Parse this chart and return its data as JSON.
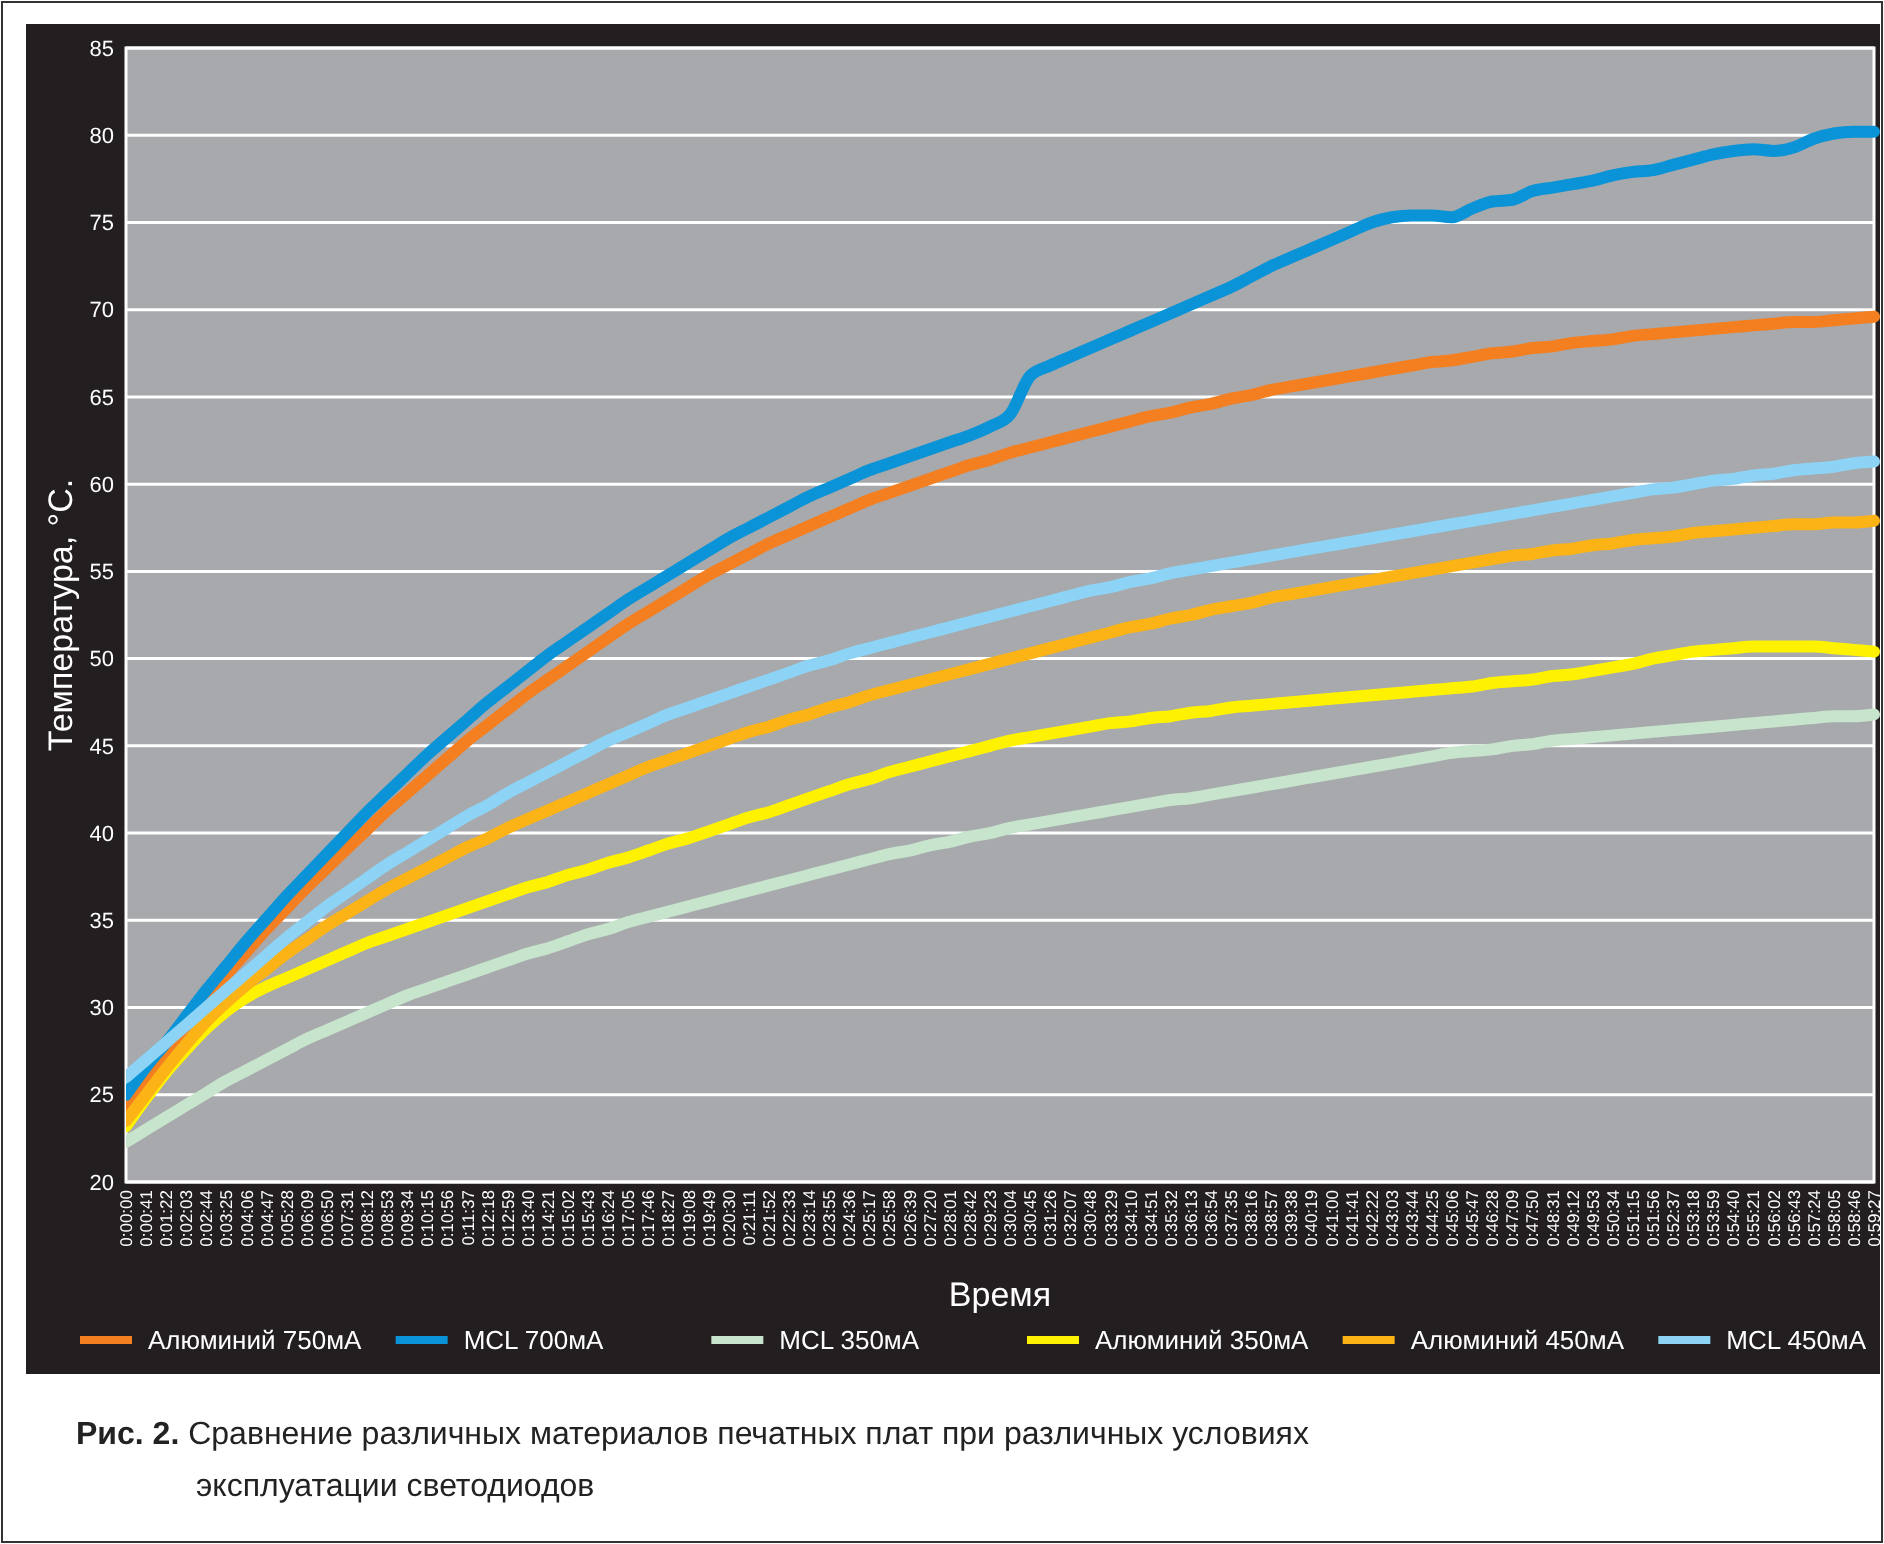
{
  "chart_data": {
    "type": "line",
    "xlabel": "Время",
    "ylabel": "Температура, °C.",
    "annotations": [
      "Рис. 2.",
      "Сравнение различных материалов печатных плат при различных условиях эксплуатации светодиодов"
    ],
    "categories": [
      "0:00:00",
      "0:00:41",
      "0:01:22",
      "0:02:03",
      "0:02:44",
      "0:03:25",
      "0:04:06",
      "0:04:47",
      "0:05:28",
      "0:06:09",
      "0:06:50",
      "0:07:31",
      "0:08:12",
      "0:08:53",
      "0:09:34",
      "0:10:15",
      "0:10:56",
      "0:11:37",
      "0:12:18",
      "0:12:59",
      "0:13:40",
      "0:14:21",
      "0:15:02",
      "0:15:43",
      "0:16:24",
      "0:17:05",
      "0:17:46",
      "0:18:27",
      "0:19:08",
      "0:19:49",
      "0:20:30",
      "0:21:11",
      "0:21:52",
      "0:22:33",
      "0:23:14",
      "0:23:55",
      "0:24:36",
      "0:25:17",
      "0:25:58",
      "0:26:39",
      "0:27:20",
      "0:28:01",
      "0:28:42",
      "0:29:23",
      "0:30:04",
      "0:30:45",
      "0:31:26",
      "0:32:07",
      "0:30:48",
      "0:33:29",
      "0:34:10",
      "0:34:51",
      "0:35:32",
      "0:36:13",
      "0:36:54",
      "0:37:35",
      "0:38:16",
      "0:38:57",
      "0:39:38",
      "0:40:19",
      "0:41:00",
      "0:41:41",
      "0:42:22",
      "0:43:03",
      "0:43:44",
      "0:44:25",
      "0:45:06",
      "0:45:47",
      "0:46:28",
      "0:47:09",
      "0:47:50",
      "0:48:31",
      "0:49:12",
      "0:49:53",
      "0:50:34",
      "0:51:15",
      "0:51:56",
      "0:52:37",
      "0:53:18",
      "0:53:59",
      "0:54:40",
      "0:55:21",
      "0:56:02",
      "0:56:43",
      "0:57:24",
      "0:58:05",
      "0:58:46",
      "0:59:27"
    ],
    "series": [
      {
        "name": "Алюминий 750мА",
        "color": "#f47f20",
        "values": [
          24.0,
          25.8,
          27.5,
          29.0,
          30.5,
          31.9,
          33.2,
          34.5,
          35.7,
          36.9,
          38.0,
          39.1,
          40.2,
          41.3,
          42.3,
          43.3,
          44.3,
          45.3,
          46.2,
          47.1,
          48.0,
          48.8,
          49.6,
          50.4,
          51.2,
          52.0,
          52.7,
          53.4,
          54.1,
          54.8,
          55.4,
          56.0,
          56.6,
          57.1,
          57.6,
          58.1,
          58.6,
          59.1,
          59.5,
          59.9,
          60.3,
          60.7,
          61.1,
          61.4,
          61.8,
          62.1,
          62.4,
          62.7,
          63.0,
          63.3,
          63.6,
          63.9,
          64.1,
          64.4,
          64.6,
          64.9,
          65.1,
          65.4,
          65.6,
          65.8,
          66.0,
          66.2,
          66.4,
          66.6,
          66.8,
          67.0,
          67.1,
          67.3,
          67.5,
          67.6,
          67.8,
          67.9,
          68.1,
          68.2,
          68.3,
          68.5,
          68.6,
          68.7,
          68.8,
          68.9,
          69.0,
          69.1,
          69.2,
          69.3,
          69.3,
          69.4,
          69.5,
          69.6
        ]
      },
      {
        "name": "MCL 700мА",
        "color": "#0a93d6",
        "values": [
          25.0,
          26.6,
          28.0,
          29.5,
          31.0,
          32.4,
          33.8,
          35.1,
          36.4,
          37.6,
          38.8,
          40.0,
          41.2,
          42.3,
          43.4,
          44.5,
          45.5,
          46.5,
          47.5,
          48.4,
          49.3,
          50.2,
          51.0,
          51.8,
          52.6,
          53.4,
          54.1,
          54.8,
          55.5,
          56.2,
          56.9,
          57.5,
          58.1,
          58.7,
          59.3,
          59.8,
          60.3,
          60.8,
          61.2,
          61.6,
          62.0,
          62.4,
          62.8,
          63.3,
          64.0,
          66.2,
          66.8,
          67.3,
          67.8,
          68.3,
          68.8,
          69.3,
          69.8,
          70.3,
          70.8,
          71.3,
          71.9,
          72.5,
          73.0,
          73.5,
          74.0,
          74.5,
          75.0,
          75.3,
          75.4,
          75.4,
          75.3,
          75.8,
          76.2,
          76.3,
          76.8,
          77.0,
          77.2,
          77.4,
          77.7,
          77.9,
          78.0,
          78.3,
          78.6,
          78.9,
          79.1,
          79.2,
          79.1,
          79.3,
          79.8,
          80.1,
          80.2,
          80.2
        ]
      },
      {
        "name": "MCL 350мА",
        "color": "#c7e4cc",
        "values": [
          22.3,
          23.0,
          23.7,
          24.4,
          25.1,
          25.8,
          26.4,
          27.0,
          27.6,
          28.2,
          28.7,
          29.2,
          29.7,
          30.2,
          30.7,
          31.1,
          31.5,
          31.9,
          32.3,
          32.7,
          33.1,
          33.4,
          33.8,
          34.2,
          34.5,
          34.9,
          35.2,
          35.5,
          35.8,
          36.1,
          36.4,
          36.7,
          37.0,
          37.3,
          37.6,
          37.9,
          38.2,
          38.5,
          38.8,
          39.0,
          39.3,
          39.5,
          39.8,
          40.0,
          40.3,
          40.5,
          40.7,
          40.9,
          41.1,
          41.3,
          41.5,
          41.7,
          41.9,
          42.0,
          42.2,
          42.4,
          42.6,
          42.8,
          43.0,
          43.2,
          43.4,
          43.6,
          43.8,
          44.0,
          44.2,
          44.4,
          44.6,
          44.7,
          44.8,
          45.0,
          45.1,
          45.3,
          45.4,
          45.5,
          45.6,
          45.7,
          45.8,
          45.9,
          46.0,
          46.1,
          46.2,
          46.3,
          46.4,
          46.5,
          46.6,
          46.7,
          46.7,
          46.8
        ]
      },
      {
        "name": "Алюминий 350мА",
        "color": "#fff200",
        "values": [
          23.2,
          24.8,
          26.3,
          27.6,
          28.8,
          29.8,
          30.6,
          31.2,
          31.7,
          32.2,
          32.7,
          33.2,
          33.7,
          34.1,
          34.5,
          34.9,
          35.3,
          35.7,
          36.1,
          36.5,
          36.9,
          37.2,
          37.6,
          37.9,
          38.3,
          38.6,
          39.0,
          39.4,
          39.7,
          40.1,
          40.5,
          40.9,
          41.2,
          41.6,
          42.0,
          42.4,
          42.8,
          43.1,
          43.5,
          43.8,
          44.1,
          44.4,
          44.7,
          45.0,
          45.3,
          45.5,
          45.7,
          45.9,
          46.1,
          46.3,
          46.4,
          46.6,
          46.7,
          46.9,
          47.0,
          47.2,
          47.3,
          47.4,
          47.5,
          47.6,
          47.7,
          47.8,
          47.9,
          48.0,
          48.1,
          48.2,
          48.3,
          48.4,
          48.6,
          48.7,
          48.8,
          49.0,
          49.1,
          49.3,
          49.5,
          49.7,
          50.0,
          50.2,
          50.4,
          50.5,
          50.6,
          50.7,
          50.7,
          50.7,
          50.7,
          50.6,
          50.5,
          50.4
        ]
      },
      {
        "name": "Алюминий 450мА",
        "color": "#fbb316",
        "values": [
          23.5,
          25.0,
          26.5,
          27.9,
          29.2,
          30.3,
          31.3,
          32.2,
          33.1,
          33.9,
          34.7,
          35.4,
          36.1,
          36.8,
          37.4,
          38.0,
          38.6,
          39.2,
          39.7,
          40.3,
          40.8,
          41.3,
          41.8,
          42.3,
          42.8,
          43.3,
          43.8,
          44.2,
          44.6,
          45.0,
          45.4,
          45.8,
          46.1,
          46.5,
          46.8,
          47.2,
          47.5,
          47.9,
          48.2,
          48.5,
          48.8,
          49.1,
          49.4,
          49.7,
          50.0,
          50.3,
          50.6,
          50.9,
          51.2,
          51.5,
          51.8,
          52.0,
          52.3,
          52.5,
          52.8,
          53.0,
          53.2,
          53.5,
          53.7,
          53.9,
          54.1,
          54.3,
          54.5,
          54.7,
          54.9,
          55.1,
          55.3,
          55.5,
          55.7,
          55.9,
          56.0,
          56.2,
          56.3,
          56.5,
          56.6,
          56.8,
          56.9,
          57.0,
          57.2,
          57.3,
          57.4,
          57.5,
          57.6,
          57.7,
          57.7,
          57.8,
          57.8,
          57.9
        ]
      },
      {
        "name": "MCL 450мА",
        "color": "#8dd3f5",
        "values": [
          26.0,
          27.0,
          28.0,
          29.0,
          30.0,
          31.0,
          32.0,
          33.0,
          34.0,
          34.9,
          35.8,
          36.6,
          37.4,
          38.2,
          38.9,
          39.6,
          40.3,
          41.0,
          41.6,
          42.3,
          42.9,
          43.5,
          44.1,
          44.7,
          45.3,
          45.8,
          46.3,
          46.8,
          47.2,
          47.6,
          48.0,
          48.4,
          48.8,
          49.2,
          49.6,
          49.9,
          50.3,
          50.6,
          50.9,
          51.2,
          51.5,
          51.8,
          52.1,
          52.4,
          52.7,
          53.0,
          53.3,
          53.6,
          53.9,
          54.1,
          54.4,
          54.6,
          54.9,
          55.1,
          55.3,
          55.5,
          55.7,
          55.9,
          56.1,
          56.3,
          56.5,
          56.7,
          56.9,
          57.1,
          57.3,
          57.5,
          57.7,
          57.9,
          58.1,
          58.3,
          58.5,
          58.7,
          58.9,
          59.1,
          59.3,
          59.5,
          59.7,
          59.8,
          60.0,
          60.2,
          60.3,
          60.5,
          60.6,
          60.8,
          60.9,
          61.0,
          61.2,
          61.3
        ]
      }
    ],
    "ylim": [
      20,
      85
    ],
    "yticks": [
      20,
      25,
      30,
      35,
      40,
      45,
      50,
      55,
      60,
      65,
      70,
      75,
      80,
      85
    ],
    "grid": "y",
    "legend": "bottom",
    "marker": "none",
    "line_style": "solid"
  }
}
